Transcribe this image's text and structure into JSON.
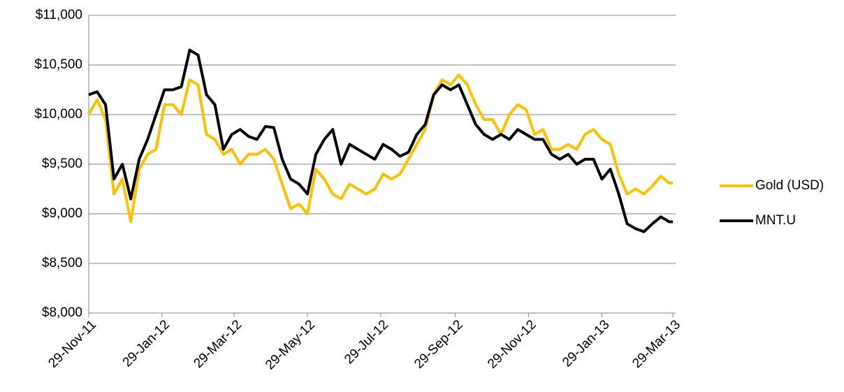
{
  "chart_data": {
    "type": "line",
    "x": [
      "2011-11-29",
      "2011-12-06",
      "2011-12-13",
      "2011-12-20",
      "2011-12-27",
      "2012-01-03",
      "2012-01-10",
      "2012-01-17",
      "2012-01-24",
      "2012-01-31",
      "2012-02-07",
      "2012-02-14",
      "2012-02-21",
      "2012-02-28",
      "2012-03-06",
      "2012-03-13",
      "2012-03-20",
      "2012-03-27",
      "2012-04-03",
      "2012-04-10",
      "2012-04-17",
      "2012-04-24",
      "2012-05-01",
      "2012-05-08",
      "2012-05-15",
      "2012-05-22",
      "2012-05-29",
      "2012-06-05",
      "2012-06-12",
      "2012-06-19",
      "2012-06-26",
      "2012-07-03",
      "2012-07-10",
      "2012-07-17",
      "2012-07-24",
      "2012-07-31",
      "2012-08-07",
      "2012-08-14",
      "2012-08-21",
      "2012-08-28",
      "2012-09-04",
      "2012-09-11",
      "2012-09-18",
      "2012-09-25",
      "2012-10-02",
      "2012-10-09",
      "2012-10-16",
      "2012-10-23",
      "2012-10-30",
      "2012-11-06",
      "2012-11-13",
      "2012-11-20",
      "2012-11-27",
      "2012-12-04",
      "2012-12-11",
      "2012-12-18",
      "2012-12-25",
      "2013-01-01",
      "2013-01-08",
      "2013-01-15",
      "2013-01-22",
      "2013-01-29",
      "2013-02-05",
      "2013-02-12",
      "2013-02-19",
      "2013-02-26",
      "2013-03-05",
      "2013-03-12",
      "2013-03-19",
      "2013-03-26",
      "2013-03-29"
    ],
    "series": [
      {
        "name": "Gold (USD)",
        "color": "#ffc000",
        "values": [
          10000,
          10150,
          9950,
          9200,
          9350,
          8920,
          9450,
          9600,
          9650,
          10100,
          10100,
          10000,
          10350,
          10300,
          9800,
          9750,
          9600,
          9650,
          9500,
          9600,
          9600,
          9650,
          9550,
          9300,
          9050,
          9100,
          9000,
          9450,
          9350,
          9200,
          9150,
          9300,
          9250,
          9200,
          9250,
          9400,
          9350,
          9400,
          9550,
          9700,
          9850,
          10200,
          10350,
          10300,
          10400,
          10300,
          10100,
          9950,
          9950,
          9800,
          10000,
          10100,
          10050,
          9800,
          9850,
          9650,
          9650,
          9700,
          9650,
          9800,
          9850,
          9750,
          9700,
          9400,
          9200,
          9250,
          9200,
          9280,
          9380,
          9310,
          9310
        ]
      },
      {
        "name": "MNT.U",
        "color": "#000000",
        "values": [
          10200,
          10230,
          10100,
          9350,
          9500,
          9150,
          9550,
          9750,
          10000,
          10250,
          10250,
          10280,
          10650,
          10600,
          10200,
          10100,
          9650,
          9800,
          9850,
          9780,
          9750,
          9880,
          9870,
          9550,
          9350,
          9300,
          9200,
          9600,
          9750,
          9850,
          9500,
          9700,
          9650,
          9600,
          9550,
          9700,
          9650,
          9580,
          9620,
          9800,
          9900,
          10200,
          10300,
          10250,
          10300,
          10100,
          9900,
          9800,
          9750,
          9800,
          9750,
          9850,
          9800,
          9750,
          9750,
          9600,
          9550,
          9600,
          9500,
          9550,
          9550,
          9350,
          9450,
          9200,
          8900,
          8850,
          8820,
          8900,
          8970,
          8920,
          8920
        ]
      }
    ],
    "xlim": [
      "2011-11-29",
      "2013-03-29"
    ],
    "xticks": [
      {
        "value": "2011-11-29",
        "label": "29-Nov-11"
      },
      {
        "value": "2012-01-29",
        "label": "29-Jan-12"
      },
      {
        "value": "2012-03-29",
        "label": "29-Mar-12"
      },
      {
        "value": "2012-05-29",
        "label": "29-May-12"
      },
      {
        "value": "2012-07-29",
        "label": "29-Jul-12"
      },
      {
        "value": "2012-09-29",
        "label": "29-Sep-12"
      },
      {
        "value": "2012-11-29",
        "label": "29-Nov-12"
      },
      {
        "value": "2013-01-29",
        "label": "29-Jan-13"
      },
      {
        "value": "2013-03-29",
        "label": "29-Mar-13"
      }
    ],
    "ylim": [
      8000,
      11000
    ],
    "yticks": [
      {
        "value": 8000,
        "label": "$8,000"
      },
      {
        "value": 8500,
        "label": "$8,500"
      },
      {
        "value": 9000,
        "label": "$9,000"
      },
      {
        "value": 9500,
        "label": "$9,500"
      },
      {
        "value": 10000,
        "label": "$10,000"
      },
      {
        "value": 10500,
        "label": "$10,500"
      },
      {
        "value": 11000,
        "label": "$11,000"
      }
    ],
    "grid": true,
    "legend": "right"
  }
}
